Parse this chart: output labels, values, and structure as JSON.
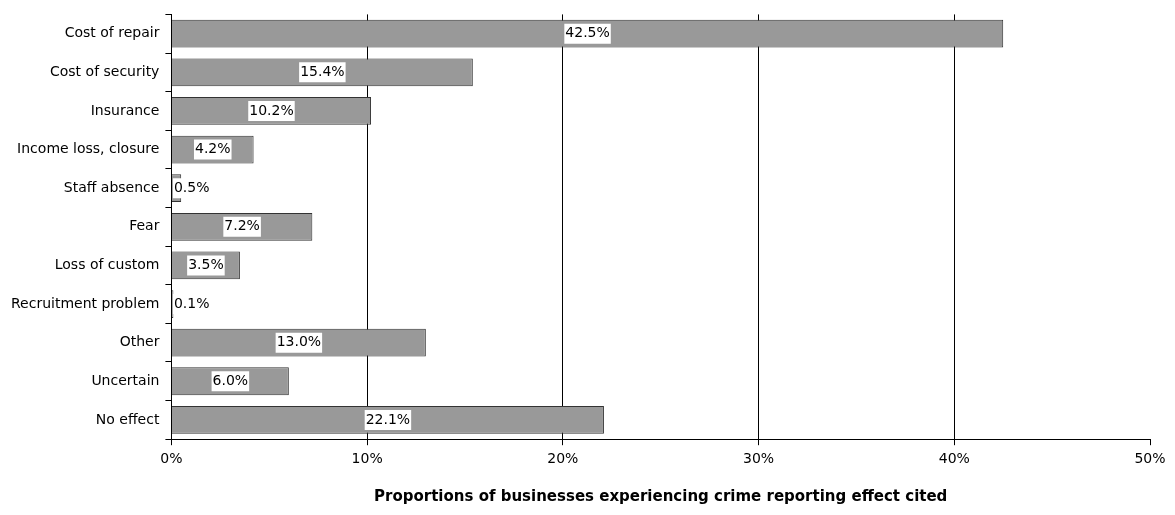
{
  "chart_data": {
    "type": "bar",
    "orientation": "horizontal",
    "xlabel": "Proportions of businesses experiencing crime reporting effect cited",
    "categories": [
      "Cost of repair",
      "Cost of security",
      "Insurance",
      "Income loss, closure",
      "Staff absence",
      "Fear",
      "Loss of custom",
      "Recruitment problem",
      "Other",
      "Uncertain",
      "No effect"
    ],
    "values": [
      42.5,
      15.4,
      10.2,
      4.2,
      0.5,
      7.2,
      3.5,
      0.1,
      13.0,
      6.0,
      22.1
    ],
    "value_labels": [
      "42.5%",
      "15.4%",
      "10.2%",
      "4.2%",
      "0.5%",
      "7.2%",
      "3.5%",
      "0.1%",
      "13.0%",
      "6.0%",
      "22.1%"
    ],
    "color": "#999999",
    "xlim": [
      0,
      50
    ],
    "xticks": [
      {
        "value": 0,
        "label": "0%"
      },
      {
        "value": 10,
        "label": "10%"
      },
      {
        "value": 20,
        "label": "20%"
      },
      {
        "value": 30,
        "label": "30%"
      },
      {
        "value": 40,
        "label": "40%"
      },
      {
        "value": 50,
        "label": "50%"
      }
    ],
    "grid": "x",
    "legend": false
  }
}
